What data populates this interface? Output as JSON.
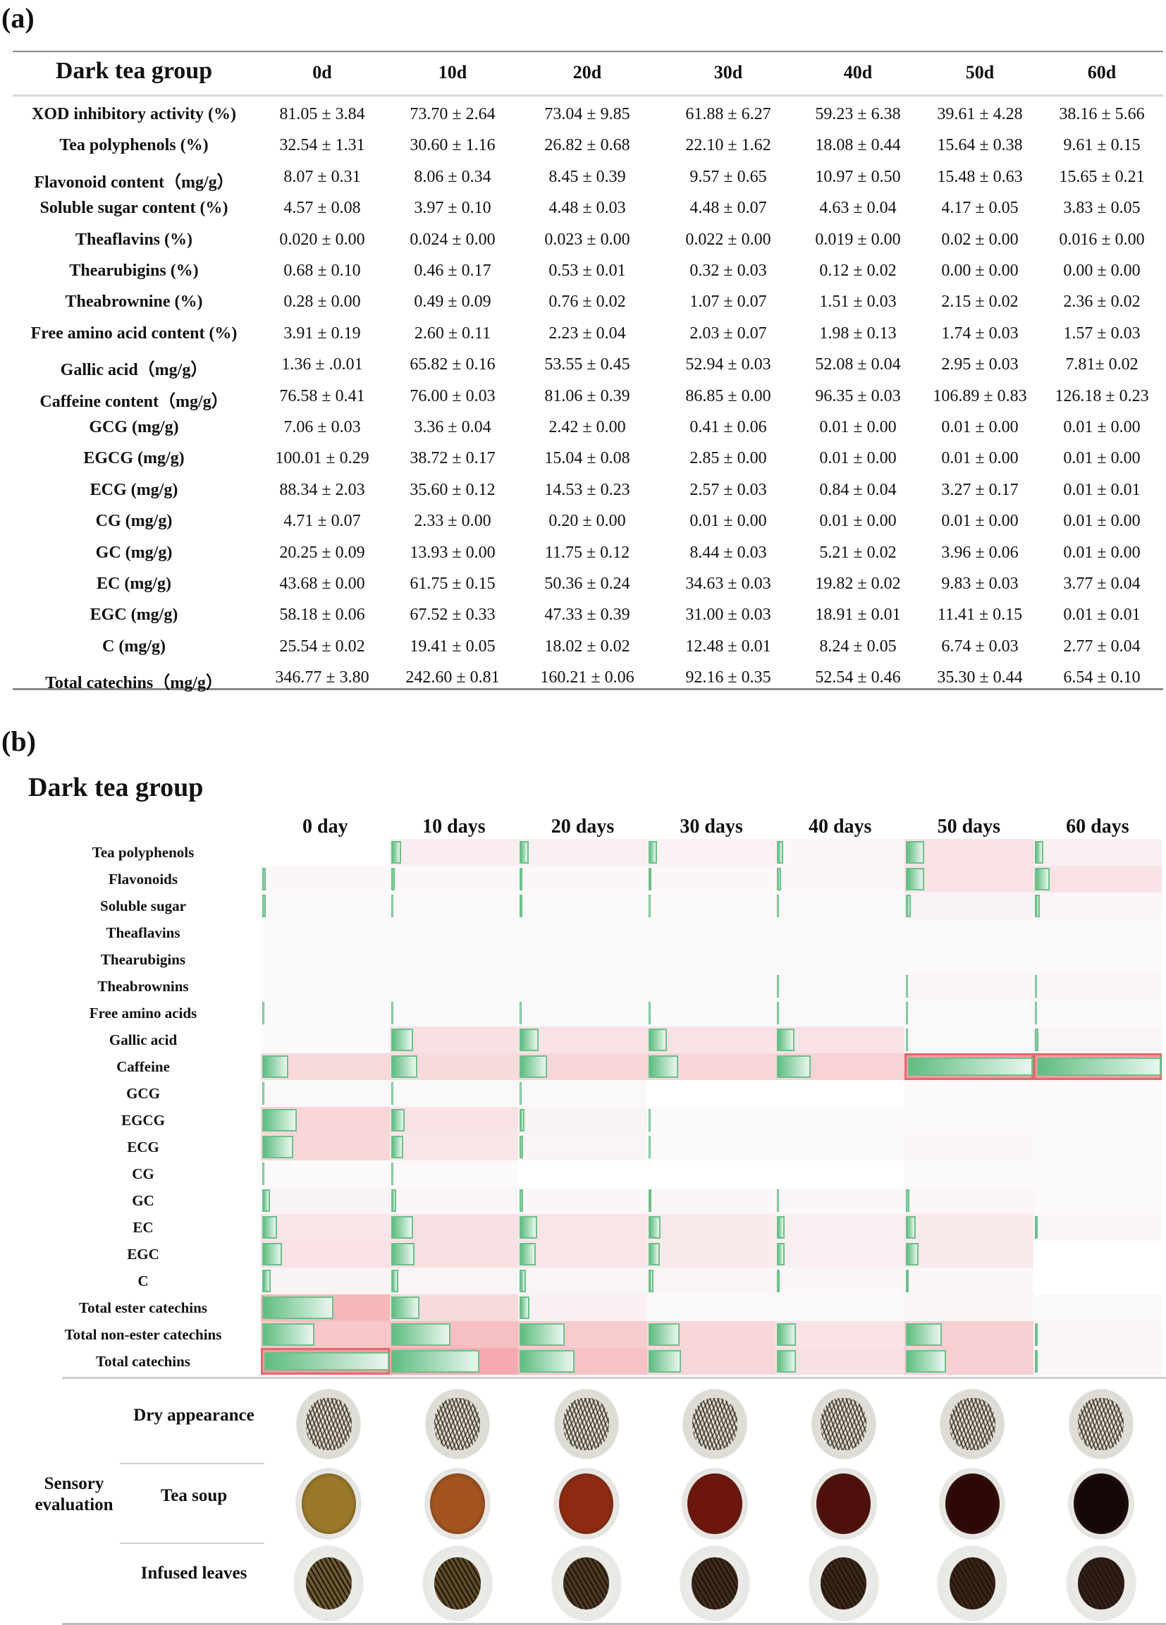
{
  "panel_a": {
    "label": "(a)",
    "title": "Dark tea group",
    "columns": [
      "0d",
      "10d",
      "20d",
      "30d",
      "40d",
      "50d",
      "60d"
    ],
    "rows": [
      {
        "label": "XOD inhibitory activity (%)",
        "values": [
          "81.05 ± 3.84",
          "73.70 ± 2.64",
          "73.04 ± 9.85",
          "61.88 ± 6.27",
          "59.23 ± 6.38",
          "39.61 ± 4.28",
          "38.16 ± 5.66"
        ]
      },
      {
        "label": "Tea polyphenols (%)",
        "values": [
          "32.54 ± 1.31",
          "30.60 ± 1.16",
          "26.82 ± 0.68",
          "22.10 ± 1.62",
          "18.08 ± 0.44",
          "15.64 ± 0.38",
          "9.61 ± 0.15"
        ]
      },
      {
        "label": "Flavonoid content（mg/g）",
        "values": [
          "8.07 ± 0.31",
          "8.06 ± 0.34",
          "8.45 ± 0.39",
          "9.57 ± 0.65",
          "10.97 ± 0.50",
          "15.48 ± 0.63",
          "15.65 ± 0.21"
        ]
      },
      {
        "label": "Soluble sugar content (%)",
        "values": [
          "4.57 ± 0.08",
          "3.97 ± 0.10",
          "4.48 ± 0.03",
          "4.48 ± 0.07",
          "4.63 ± 0.04",
          "4.17 ± 0.05",
          "3.83 ± 0.05"
        ]
      },
      {
        "label": "Theaflavins (%)",
        "values": [
          "0.020 ± 0.00",
          "0.024 ± 0.00",
          "0.023 ± 0.00",
          "0.022 ± 0.00",
          "0.019 ± 0.00",
          "0.02 ± 0.00",
          "0.016 ± 0.00"
        ]
      },
      {
        "label": "Thearubigins (%)",
        "values": [
          "0.68 ± 0.10",
          "0.46 ± 0.17",
          "0.53 ± 0.01",
          "0.32 ± 0.03",
          "0.12 ± 0.02",
          "0.00 ± 0.00",
          "0.00 ± 0.00"
        ]
      },
      {
        "label": "Theabrownine (%)",
        "values": [
          "0.28 ± 0.00",
          "0.49 ± 0.09",
          "0.76 ± 0.02",
          "1.07 ± 0.07",
          "1.51 ± 0.03",
          "2.15 ± 0.02",
          "2.36 ± 0.02"
        ]
      },
      {
        "label": "Free amino acid content (%)",
        "values": [
          "3.91 ± 0.19",
          "2.60 ± 0.11",
          "2.23 ± 0.04",
          "2.03 ± 0.07",
          "1.98 ± 0.13",
          "1.74 ± 0.03",
          "1.57 ± 0.03"
        ]
      },
      {
        "label": "Gallic acid（mg/g）",
        "values": [
          "1.36 ± .0.01",
          "65.82 ± 0.16",
          "53.55 ± 0.45",
          "52.94 ± 0.03",
          "52.08 ± 0.04",
          "2.95 ± 0.03",
          "7.81± 0.02"
        ]
      },
      {
        "label": "Caffeine content（mg/g）",
        "values": [
          "76.58 ± 0.41",
          "76.00 ± 0.03",
          "81.06 ± 0.39",
          "86.85 ± 0.00",
          "96.35 ± 0.03",
          "106.89 ± 0.83",
          "126.18 ± 0.23"
        ]
      },
      {
        "label": "GCG (mg/g)",
        "values": [
          "7.06 ± 0.03",
          "3.36 ± 0.04",
          "2.42 ± 0.00",
          "0.41 ± 0.06",
          "0.01 ± 0.00",
          "0.01 ± 0.00",
          "0.01 ± 0.00"
        ]
      },
      {
        "label": "EGCG (mg/g)",
        "values": [
          "100.01 ± 0.29",
          "38.72 ± 0.17",
          "15.04 ± 0.08",
          "2.85 ± 0.00",
          "0.01 ± 0.00",
          "0.01 ± 0.00",
          "0.01 ± 0.00"
        ]
      },
      {
        "label": "ECG (mg/g)",
        "values": [
          "88.34 ± 2.03",
          "35.60 ± 0.12",
          "14.53 ± 0.23",
          "2.57 ± 0.03",
          "0.84 ± 0.04",
          "3.27 ± 0.17",
          "0.01 ± 0.01"
        ]
      },
      {
        "label": "CG (mg/g)",
        "values": [
          "4.71 ± 0.07",
          "2.33 ± 0.00",
          "0.20 ± 0.00",
          "0.01 ± 0.00",
          "0.01 ± 0.00",
          "0.01 ± 0.00",
          "0.01 ± 0.00"
        ]
      },
      {
        "label": "GC (mg/g)",
        "values": [
          "20.25 ± 0.09",
          "13.93 ± 0.00",
          "11.75 ± 0.12",
          "8.44 ± 0.03",
          "5.21 ± 0.02",
          "3.96 ± 0.06",
          "0.01 ± 0.00"
        ]
      },
      {
        "label": "EC (mg/g)",
        "values": [
          "43.68 ± 0.00",
          "61.75 ± 0.15",
          "50.36 ± 0.24",
          "34.63 ± 0.03",
          "19.82 ± 0.02",
          "9.83 ± 0.03",
          "3.77 ± 0.04"
        ]
      },
      {
        "label": "EGC (mg/g)",
        "values": [
          "58.18 ± 0.06",
          "67.52 ± 0.33",
          "47.33 ± 0.39",
          "31.00 ± 0.03",
          "18.91 ± 0.01",
          "11.41 ± 0.15",
          "0.01 ± 0.01"
        ]
      },
      {
        "label": "C (mg/g)",
        "values": [
          "25.54 ± 0.02",
          "19.41 ± 0.05",
          "18.02 ± 0.02",
          "12.48 ± 0.01",
          "8.24 ± 0.05",
          "6.74 ± 0.03",
          "2.77 ± 0.04"
        ]
      },
      {
        "label": "Total catechins（mg/g）",
        "values": [
          "346.77 ± 3.80",
          "242.60 ± 0.81",
          "160.21 ± 0.06",
          "92.16 ± 0.35",
          "52.54 ± 0.46",
          "35.30 ± 0.44",
          "6.54 ± 0.10"
        ]
      }
    ]
  },
  "panel_b": {
    "label": "(b)",
    "title": "Dark tea group",
    "sensory": {
      "group_label": "Sensory evaluation",
      "rows": [
        "Dry appearance",
        "Tea soup",
        "Infused leaves"
      ],
      "soup_colors": [
        "#9a7a2a",
        "#a4541f",
        "#8e2a12",
        "#6e150c",
        "#4e0f0a",
        "#2e0806",
        "#160606"
      ],
      "leaf_tones": [
        "#6b5a30",
        "#5e4a28",
        "#4a3820",
        "#3e2c1a",
        "#3a2818",
        "#3a2416",
        "#33201a"
      ]
    }
  },
  "chart_data": {
    "type": "heatmap",
    "title": "Dark tea group",
    "columns": [
      "0 day",
      "10 days",
      "20 days",
      "30 days",
      "40 days",
      "50 days",
      "60 days"
    ],
    "rows": [
      "Tea polyphenols",
      "Flavonoids",
      "Soluble sugar",
      "Theaflavins",
      "Thearubigins",
      "Theabrownins",
      "Free amino acids",
      "Gallic acid",
      "Caffeine",
      "GCG",
      "EGCG",
      "ECG",
      "CG",
      "GC",
      "EC",
      "EGC",
      "C",
      "Total ester catechins",
      "Total non-ester catechins",
      "Total catechins"
    ],
    "bar_fraction": [
      [
        0.0,
        0.08,
        0.07,
        0.07,
        0.05,
        0.15,
        0.07
      ],
      [
        0.03,
        0.03,
        0.02,
        0.02,
        0.03,
        0.15,
        0.12
      ],
      [
        0.03,
        0.01,
        0.02,
        0.01,
        0.01,
        0.04,
        0.04
      ],
      [
        0.0,
        0.0,
        0.0,
        0.0,
        0.0,
        0.0,
        0.0
      ],
      [
        0.0,
        0.0,
        0.0,
        0.0,
        0.0,
        0.0,
        0.0
      ],
      [
        0.0,
        0.0,
        0.0,
        0.0,
        0.01,
        0.01,
        0.01
      ],
      [
        0.01,
        0.01,
        0.01,
        0.01,
        0.01,
        0.01,
        0.01
      ],
      [
        0.0,
        0.18,
        0.15,
        0.15,
        0.14,
        0.01,
        0.03
      ],
      [
        0.21,
        0.21,
        0.22,
        0.24,
        0.27,
        1.0,
        1.0
      ],
      [
        0.01,
        0.01,
        0.01,
        0.0,
        0.0,
        0.0,
        0.0
      ],
      [
        0.28,
        0.11,
        0.04,
        0.01,
        0.0,
        0.0,
        0.0
      ],
      [
        0.25,
        0.1,
        0.03,
        0.01,
        0.0,
        0.0,
        0.0
      ],
      [
        0.01,
        0.01,
        0.0,
        0.0,
        0.0,
        0.0,
        0.0
      ],
      [
        0.06,
        0.04,
        0.03,
        0.02,
        0.01,
        0.03,
        0.0
      ],
      [
        0.12,
        0.18,
        0.14,
        0.1,
        0.06,
        0.08,
        0.02
      ],
      [
        0.16,
        0.19,
        0.13,
        0.09,
        0.06,
        0.1,
        0.0
      ],
      [
        0.07,
        0.06,
        0.05,
        0.04,
        0.02,
        0.02,
        0.0
      ],
      [
        0.57,
        0.23,
        0.08,
        0.0,
        0.0,
        0.0,
        0.0
      ],
      [
        0.42,
        0.48,
        0.36,
        0.25,
        0.15,
        0.29,
        0.02
      ],
      [
        1.0,
        0.71,
        0.44,
        0.26,
        0.15,
        0.32,
        0.02
      ]
    ],
    "background_intensity": [
      [
        0.0,
        0.15,
        0.12,
        0.1,
        0.05,
        0.25,
        0.12
      ],
      [
        0.04,
        0.04,
        0.04,
        0.04,
        0.04,
        0.25,
        0.25
      ],
      [
        0.03,
        0.03,
        0.03,
        0.03,
        0.03,
        0.08,
        0.06
      ],
      [
        0.02,
        0.02,
        0.02,
        0.02,
        0.02,
        0.02,
        0.02
      ],
      [
        0.02,
        0.02,
        0.02,
        0.02,
        0.02,
        0.02,
        0.02
      ],
      [
        0.02,
        0.02,
        0.02,
        0.02,
        0.02,
        0.04,
        0.04
      ],
      [
        0.02,
        0.02,
        0.02,
        0.02,
        0.02,
        0.03,
        0.03
      ],
      [
        0.02,
        0.28,
        0.25,
        0.25,
        0.25,
        0.02,
        0.07
      ],
      [
        0.35,
        0.35,
        0.38,
        0.4,
        0.42,
        1.0,
        1.0
      ],
      [
        0.03,
        0.03,
        0.03,
        0.0,
        0.0,
        0.02,
        0.02
      ],
      [
        0.4,
        0.25,
        0.08,
        0.02,
        0.02,
        0.03,
        0.02
      ],
      [
        0.38,
        0.22,
        0.07,
        0.03,
        0.03,
        0.05,
        0.02
      ],
      [
        0.02,
        0.02,
        0.0,
        0.0,
        0.0,
        0.02,
        0.02
      ],
      [
        0.08,
        0.05,
        0.04,
        0.04,
        0.04,
        0.06,
        0.02
      ],
      [
        0.22,
        0.28,
        0.24,
        0.18,
        0.12,
        0.18,
        0.04
      ],
      [
        0.25,
        0.28,
        0.22,
        0.18,
        0.12,
        0.18,
        0.0
      ],
      [
        0.08,
        0.07,
        0.07,
        0.06,
        0.04,
        0.04,
        0.0
      ],
      [
        0.7,
        0.35,
        0.12,
        0.02,
        0.02,
        0.04,
        0.02
      ],
      [
        0.55,
        0.62,
        0.5,
        0.38,
        0.25,
        0.45,
        0.06
      ],
      [
        1.0,
        0.85,
        0.6,
        0.4,
        0.28,
        0.45,
        0.06
      ]
    ],
    "highlighted_max": [
      [
        8,
        5
      ],
      [
        8,
        6
      ],
      [
        19,
        0
      ]
    ],
    "colors": {
      "bar": "#5fbd80",
      "bar_border": "#6cc08a",
      "background_high": "#f39ca0",
      "background_low": "#fbfbfd",
      "max_border": "#e26a6f"
    }
  }
}
